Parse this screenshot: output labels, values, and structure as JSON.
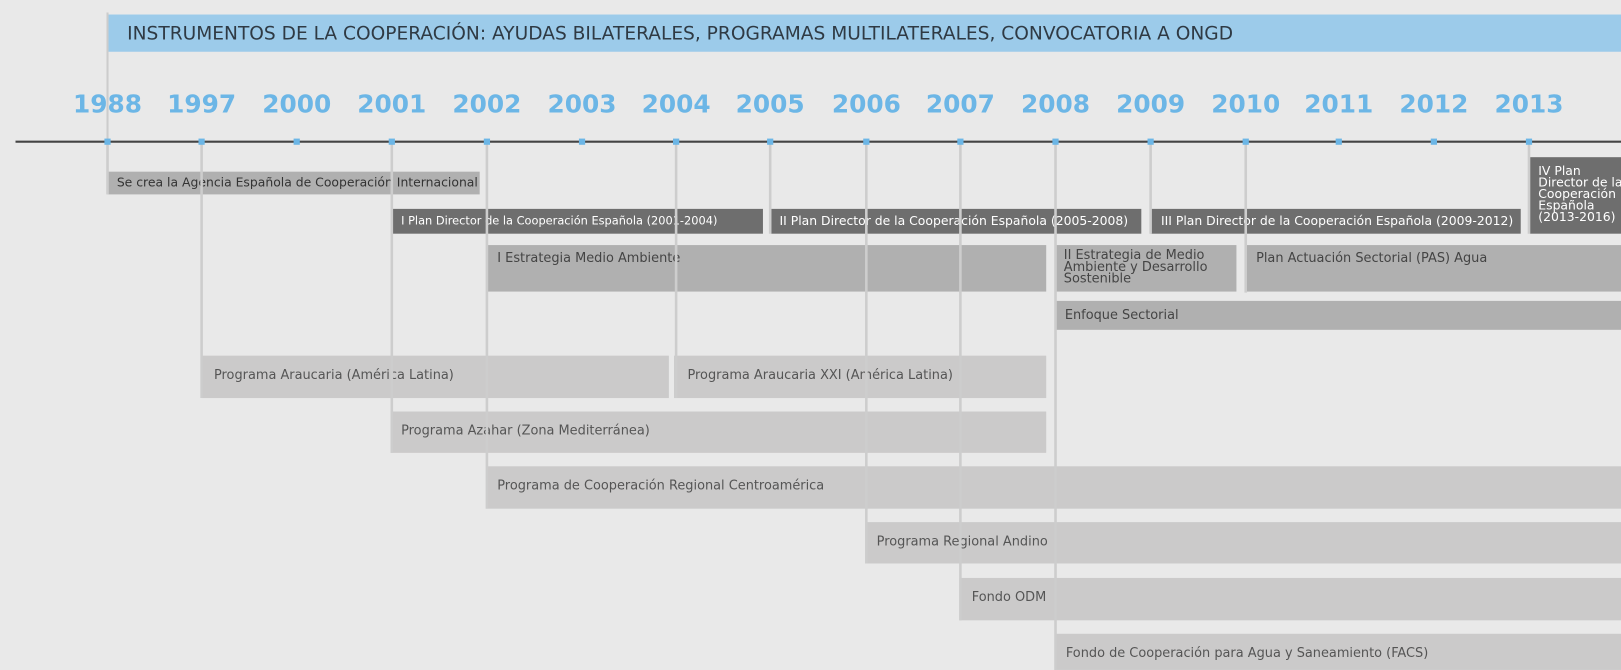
{
  "header": {
    "title": "INSTRUMENTOS DE LA COOPERACIÓN: AYUDAS BILATERALES,  PROGRAMAS MULTILATERALES, CONVOCATORIA A ONGD"
  },
  "timeline": {
    "years": [
      "1988",
      "1997",
      "2000",
      "2001",
      "2002",
      "2003",
      "2004",
      "2005",
      "2006",
      "2007",
      "2008",
      "2009",
      "2010",
      "2011",
      "2012",
      "2013"
    ]
  },
  "bars": [
    {
      "lines": [
        "Se crea la Agencia Española de Cooperación Internacional"
      ]
    },
    {
      "lines": [
        "I Plan Director de la Cooperación Española (2001-2004)"
      ]
    },
    {
      "lines": [
        "II Plan Director de la Cooperación Española (2005-2008)"
      ]
    },
    {
      "lines": [
        "III Plan Director de la Cooperación Española (2009-2012)"
      ]
    },
    {
      "lines": [
        "IV  Plan",
        "Director de la",
        "Cooperación",
        "Española",
        "(2013-2016)"
      ]
    },
    {
      "lines": [
        "I Estrategia Medio Ambiente"
      ]
    },
    {
      "lines": [
        "II Estrategia de Medio",
        "Ambiente y Desarrollo",
        "Sostenible"
      ]
    },
    {
      "lines": [
        "Plan Actuación Sectorial (PAS) Agua"
      ]
    },
    {
      "lines": [
        "Enfoque Sectorial"
      ]
    },
    {
      "lines": [
        "Programa Araucaria (América Latina)"
      ]
    },
    {
      "lines": [
        "Programa Araucaria XXI (América Latina)"
      ]
    },
    {
      "lines": [
        "Programa Azahar (Zona Mediterránea)"
      ]
    },
    {
      "lines": [
        "Programa de Cooperación Regional Centroamérica"
      ]
    },
    {
      "lines": [
        "Programa Regional Andino"
      ]
    },
    {
      "lines": [
        "Fondo ODM"
      ]
    },
    {
      "lines": [
        "Fondo de Cooperación para Agua y Saneamiento (FACS)"
      ]
    }
  ]
}
